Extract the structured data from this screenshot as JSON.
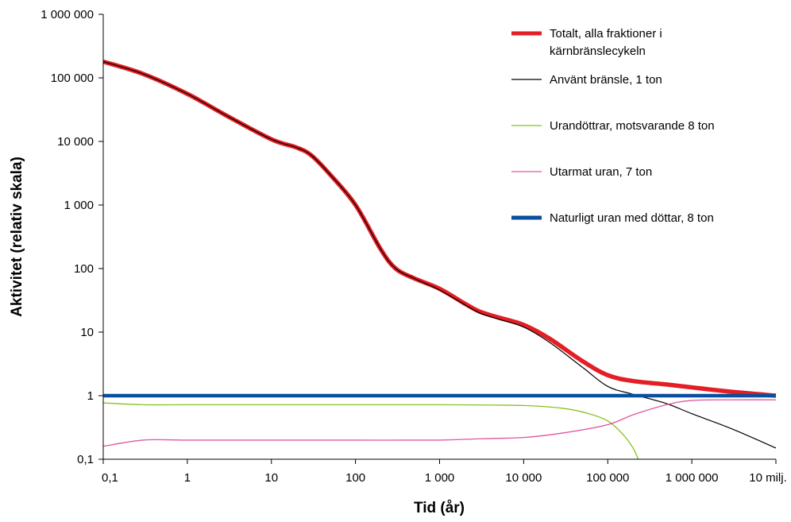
{
  "chart_data": {
    "type": "line",
    "title": "",
    "xlabel": "Tid (år)",
    "ylabel": "Aktivitet (relativ skala)",
    "x_scale": "log",
    "y_scale": "log",
    "xlim": [
      0.1,
      10000000
    ],
    "ylim": [
      0.1,
      1000000
    ],
    "grid": false,
    "legend_position": "top-right",
    "x_ticks": [
      {
        "value": 0.1,
        "label": "0,1"
      },
      {
        "value": 1,
        "label": "1"
      },
      {
        "value": 10,
        "label": "10"
      },
      {
        "value": 100,
        "label": "100"
      },
      {
        "value": 1000,
        "label": "1 000"
      },
      {
        "value": 10000,
        "label": "10 000"
      },
      {
        "value": 100000,
        "label": "100 000"
      },
      {
        "value": 1000000,
        "label": "1 000 000"
      },
      {
        "value": 10000000,
        "label": "10 milj."
      }
    ],
    "y_ticks": [
      {
        "value": 0.1,
        "label": "0,1"
      },
      {
        "value": 1,
        "label": "1"
      },
      {
        "value": 10,
        "label": "10"
      },
      {
        "value": 100,
        "label": "100"
      },
      {
        "value": 1000,
        "label": "1 000"
      },
      {
        "value": 10000,
        "label": "10 000"
      },
      {
        "value": 100000,
        "label": "100 000"
      },
      {
        "value": 1000000,
        "label": "1 000 000"
      }
    ],
    "series": [
      {
        "name": "Totalt, alla fraktioner i kärnbränslecykeln",
        "color": "#e31e24",
        "points": [
          [
            0.1,
            180000
          ],
          [
            0.3,
            115000
          ],
          [
            1,
            56000
          ],
          [
            3,
            25000
          ],
          [
            10,
            10800
          ],
          [
            20,
            8000
          ],
          [
            30,
            6000
          ],
          [
            50,
            3000
          ],
          [
            100,
            1000
          ],
          [
            200,
            200
          ],
          [
            300,
            100
          ],
          [
            500,
            70
          ],
          [
            1000,
            48
          ],
          [
            2000,
            28
          ],
          [
            3000,
            21
          ],
          [
            5000,
            17
          ],
          [
            10000,
            13
          ],
          [
            20000,
            8
          ],
          [
            50000,
            3.5
          ],
          [
            100000,
            2.1
          ],
          [
            200000,
            1.7
          ],
          [
            500000,
            1.5
          ],
          [
            1000000,
            1.35
          ],
          [
            3000000,
            1.15
          ],
          [
            10000000,
            1.0
          ]
        ]
      },
      {
        "name": "Använt bränsle, 1 ton",
        "color": "#000000",
        "points": [
          [
            0.1,
            180000
          ],
          [
            0.3,
            115000
          ],
          [
            1,
            56000
          ],
          [
            3,
            25000
          ],
          [
            10,
            10800
          ],
          [
            20,
            8000
          ],
          [
            30,
            6000
          ],
          [
            50,
            3000
          ],
          [
            100,
            1000
          ],
          [
            200,
            200
          ],
          [
            300,
            100
          ],
          [
            500,
            70
          ],
          [
            1000,
            46
          ],
          [
            2000,
            27
          ],
          [
            3000,
            20
          ],
          [
            5000,
            16
          ],
          [
            10000,
            12
          ],
          [
            20000,
            7
          ],
          [
            50000,
            2.8
          ],
          [
            100000,
            1.4
          ],
          [
            200000,
            1.05
          ],
          [
            500000,
            0.75
          ],
          [
            1000000,
            0.52
          ],
          [
            3000000,
            0.3
          ],
          [
            10000000,
            0.15
          ]
        ]
      },
      {
        "name": "Urandöttrar, motsvarande 8 ton",
        "color": "#84c225",
        "points": [
          [
            0.1,
            0.77
          ],
          [
            0.3,
            0.72
          ],
          [
            1,
            0.72
          ],
          [
            10,
            0.72
          ],
          [
            100,
            0.72
          ],
          [
            1000,
            0.72
          ],
          [
            10000,
            0.7
          ],
          [
            30000,
            0.63
          ],
          [
            60000,
            0.52
          ],
          [
            100000,
            0.4
          ],
          [
            150000,
            0.25
          ],
          [
            200000,
            0.15
          ],
          [
            230000,
            0.1
          ]
        ]
      },
      {
        "name": "Utarmat uran, 7 ton",
        "color": "#e0559f",
        "points": [
          [
            0.1,
            0.16
          ],
          [
            0.3,
            0.2
          ],
          [
            1,
            0.2
          ],
          [
            10,
            0.2
          ],
          [
            100,
            0.2
          ],
          [
            1000,
            0.2
          ],
          [
            3000,
            0.21
          ],
          [
            10000,
            0.22
          ],
          [
            30000,
            0.26
          ],
          [
            100000,
            0.35
          ],
          [
            200000,
            0.5
          ],
          [
            500000,
            0.72
          ],
          [
            1000000,
            0.84
          ],
          [
            3000000,
            0.86
          ],
          [
            10000000,
            0.86
          ]
        ]
      },
      {
        "name": "Naturligt uran med döttar, 8 ton",
        "color": "#0a4f9e",
        "points": [
          [
            0.1,
            1
          ],
          [
            10000000,
            1
          ]
        ]
      }
    ]
  },
  "legend": [
    {
      "lines": [
        "Totalt, alla fraktioner i",
        "kärnbränslecykeln"
      ],
      "color": "#e31e24",
      "width": 5
    },
    {
      "lines": [
        "Använt bränsle, 1 ton"
      ],
      "color": "#000000",
      "width": 1.2
    },
    {
      "lines": [
        "Urandöttrar, motsvarande 8 ton"
      ],
      "color": "#84c225",
      "width": 1.2
    },
    {
      "lines": [
        "Utarmat uran, 7 ton"
      ],
      "color": "#e0559f",
      "width": 1.2
    },
    {
      "lines": [
        "Naturligt uran med döttar, 8 ton"
      ],
      "color": "#0a4f9e",
      "width": 5
    }
  ]
}
